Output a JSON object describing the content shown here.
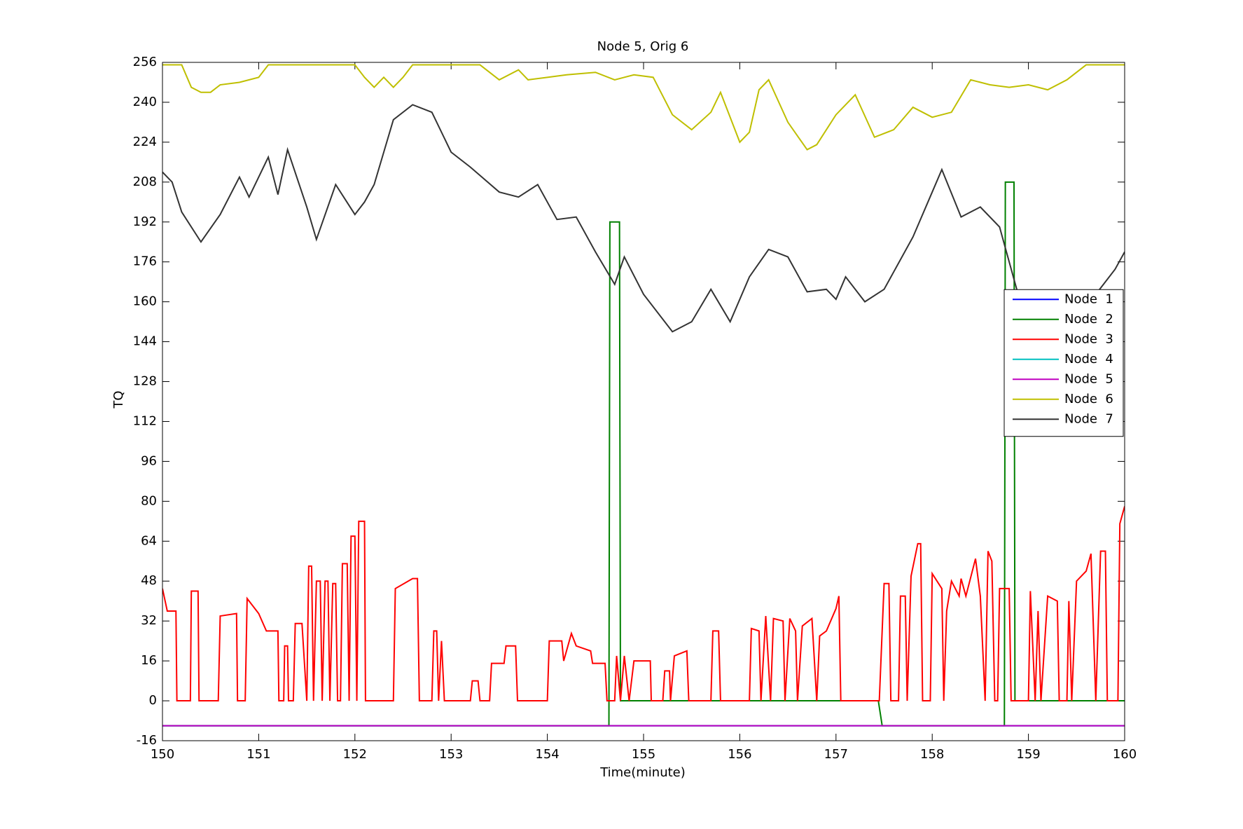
{
  "chart_data": {
    "type": "line",
    "title": "Node 5, Orig 6",
    "x_label": "Time(minute)",
    "y_label": "TQ",
    "xlim": [
      150,
      160
    ],
    "xticks": [
      150,
      151,
      152,
      153,
      154,
      155,
      156,
      157,
      158,
      159,
      160
    ],
    "ylim": [
      -16,
      256
    ],
    "yticks": [
      -16,
      0,
      16,
      32,
      48,
      64,
      80,
      96,
      112,
      128,
      144,
      160,
      176,
      192,
      208,
      224,
      240,
      256
    ],
    "grid": false,
    "legend": "east",
    "series": [
      {
        "name": "Node  1",
        "color": "#0000ff",
        "x": [
          150,
          160
        ],
        "values": [
          -10,
          -10
        ]
      },
      {
        "name": "Node  2",
        "color": "#008000",
        "x": [
          150,
          154.64,
          154.65,
          154.75,
          154.76,
          157.44,
          157.48,
          158.75,
          158.76,
          158.85,
          158.86,
          160
        ],
        "values": [
          -10,
          -10,
          192,
          192,
          0,
          0,
          -10,
          -10,
          208,
          208,
          0,
          0
        ]
      },
      {
        "name": "Node  3",
        "color": "#ff0000",
        "x": [
          150,
          150.05,
          150.14,
          150.15,
          150.29,
          150.3,
          150.37,
          150.38,
          150.58,
          150.6,
          150.77,
          150.78,
          150.86,
          150.88,
          151.0,
          151.08,
          151.2,
          151.21,
          151.26,
          151.27,
          151.3,
          151.31,
          151.36,
          151.38,
          151.45,
          151.5,
          151.52,
          151.55,
          151.57,
          151.6,
          151.64,
          151.66,
          151.69,
          151.72,
          151.74,
          151.77,
          151.8,
          151.82,
          151.85,
          151.87,
          151.92,
          151.94,
          151.96,
          152.0,
          152.02,
          152.04,
          152.1,
          152.11,
          152.4,
          152.42,
          152.6,
          152.65,
          152.67,
          152.8,
          152.82,
          152.85,
          152.87,
          152.9,
          152.93,
          153.2,
          153.22,
          153.28,
          153.3,
          153.4,
          153.42,
          153.55,
          153.57,
          153.67,
          153.69,
          154.0,
          154.02,
          154.15,
          154.17,
          154.25,
          154.3,
          154.45,
          154.47,
          154.6,
          154.62,
          154.7,
          154.72,
          154.76,
          154.8,
          154.85,
          154.9,
          155.07,
          155.08,
          155.2,
          155.22,
          155.27,
          155.28,
          155.32,
          155.45,
          155.47,
          155.7,
          155.72,
          155.78,
          155.8,
          156.1,
          156.12,
          156.2,
          156.22,
          156.27,
          156.32,
          156.35,
          156.45,
          156.47,
          156.52,
          156.58,
          156.6,
          156.65,
          156.75,
          156.8,
          156.83,
          156.9,
          157.0,
          157.03,
          157.05,
          157.45,
          157.5,
          157.55,
          157.57,
          157.65,
          157.67,
          157.72,
          157.74,
          157.78,
          157.85,
          157.88,
          157.9,
          157.98,
          158.0,
          158.1,
          158.12,
          158.15,
          158.2,
          158.28,
          158.3,
          158.35,
          158.45,
          158.5,
          158.55,
          158.58,
          158.62,
          158.65,
          158.68,
          158.7,
          158.8,
          158.82,
          159.0,
          159.02,
          159.07,
          159.1,
          159.13,
          159.2,
          159.3,
          159.32,
          159.4,
          159.42,
          159.45,
          159.5,
          159.6,
          159.65,
          159.7,
          159.75,
          159.8,
          159.82,
          159.93,
          159.95,
          160
        ],
        "values": [
          45,
          36,
          36,
          0,
          0,
          44,
          44,
          0,
          0,
          34,
          35,
          0,
          0,
          41,
          35,
          28,
          28,
          0,
          0,
          22,
          22,
          0,
          0,
          31,
          31,
          0,
          54,
          54,
          0,
          48,
          48,
          0,
          48,
          48,
          0,
          47,
          47,
          0,
          0,
          55,
          55,
          0,
          66,
          66,
          0,
          72,
          72,
          0,
          0,
          45,
          49,
          49,
          0,
          0,
          28,
          28,
          0,
          24,
          0,
          0,
          8,
          8,
          0,
          0,
          15,
          15,
          22,
          22,
          0,
          0,
          24,
          24,
          16,
          27,
          22,
          20,
          15,
          15,
          0,
          0,
          18,
          0,
          18,
          0,
          16,
          16,
          0,
          0,
          12,
          12,
          0,
          18,
          20,
          0,
          0,
          28,
          28,
          0,
          0,
          29,
          28,
          0,
          34,
          0,
          33,
          32,
          0,
          33,
          28,
          0,
          30,
          33,
          0,
          26,
          28,
          37,
          42,
          0,
          0,
          47,
          47,
          0,
          0,
          42,
          42,
          0,
          50,
          63,
          63,
          0,
          0,
          51,
          45,
          0,
          36,
          48,
          42,
          49,
          42,
          57,
          42,
          0,
          60,
          56,
          0,
          0,
          45,
          45,
          0,
          0,
          44,
          0,
          36,
          0,
          42,
          40,
          0,
          0,
          40,
          0,
          48,
          52,
          59,
          0,
          60,
          60,
          0,
          0,
          71,
          78
        ]
      },
      {
        "name": "Node  4",
        "color": "#00bfbf",
        "x": [
          150,
          160
        ],
        "values": [
          -10,
          -10
        ]
      },
      {
        "name": "Node  5",
        "color": "#bf00bf",
        "x": [
          150,
          160
        ],
        "values": [
          -10,
          -10
        ]
      },
      {
        "name": "Node  6",
        "color": "#bfbf00",
        "x": [
          150,
          150.2,
          150.3,
          150.4,
          150.5,
          150.6,
          150.8,
          151.0,
          151.1,
          151.5,
          152.0,
          152.1,
          152.2,
          152.3,
          152.4,
          152.5,
          152.6,
          153.0,
          153.3,
          153.5,
          153.7,
          153.8,
          154.0,
          154.2,
          154.5,
          154.7,
          154.9,
          155.1,
          155.3,
          155.5,
          155.7,
          155.8,
          156.0,
          156.1,
          156.2,
          156.3,
          156.5,
          156.7,
          156.8,
          157.0,
          157.2,
          157.4,
          157.6,
          157.8,
          158.0,
          158.2,
          158.4,
          158.6,
          158.8,
          159.0,
          159.2,
          159.4,
          159.6,
          160
        ],
        "values": [
          255,
          255,
          246,
          244,
          244,
          247,
          248,
          250,
          255,
          255,
          255,
          250,
          246,
          250,
          246,
          250,
          255,
          255,
          255,
          249,
          253,
          249,
          250,
          251,
          252,
          249,
          251,
          250,
          235,
          229,
          236,
          244,
          224,
          228,
          245,
          249,
          232,
          221,
          223,
          235,
          243,
          226,
          229,
          238,
          234,
          236,
          249,
          247,
          246,
          247,
          245,
          249,
          255,
          255
        ]
      },
      {
        "name": "Node  7",
        "color": "#333333",
        "x": [
          150,
          150.1,
          150.2,
          150.4,
          150.6,
          150.8,
          150.9,
          151.1,
          151.2,
          151.3,
          151.5,
          151.6,
          151.8,
          152.0,
          152.1,
          152.2,
          152.3,
          152.4,
          152.6,
          152.8,
          153.0,
          153.2,
          153.5,
          153.7,
          153.9,
          154.1,
          154.3,
          154.5,
          154.7,
          154.8,
          155.0,
          155.3,
          155.5,
          155.7,
          155.9,
          156.1,
          156.3,
          156.5,
          156.7,
          156.9,
          157.0,
          157.1,
          157.3,
          157.5,
          157.6,
          157.8,
          158.0,
          158.1,
          158.3,
          158.5,
          158.7,
          158.9,
          159.1,
          159.3,
          159.5,
          159.7,
          159.9,
          160
        ],
        "values": [
          212,
          208,
          196,
          184,
          195,
          210,
          202,
          218,
          203,
          221,
          198,
          185,
          207,
          195,
          200,
          207,
          220,
          233,
          239,
          236,
          220,
          214,
          204,
          202,
          207,
          193,
          194,
          180,
          167,
          178,
          163,
          148,
          152,
          165,
          152,
          170,
          181,
          178,
          164,
          165,
          161,
          170,
          160,
          165,
          172,
          186,
          204,
          213,
          194,
          198,
          190,
          162,
          150,
          145,
          150,
          163,
          173,
          180
        ]
      }
    ]
  }
}
